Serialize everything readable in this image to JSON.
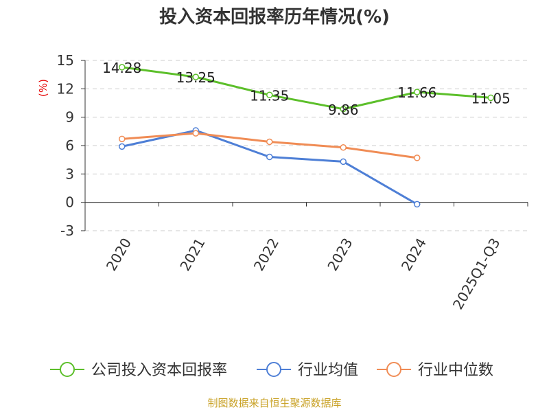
{
  "chart_data": {
    "type": "line",
    "title": "投入资本回报率历年情况(%)",
    "ylabel": "(%)",
    "ylim": [
      -3,
      15
    ],
    "yticks": [
      -3,
      0,
      3,
      6,
      9,
      12,
      15
    ],
    "categories": [
      "2020",
      "2021",
      "2022",
      "2023",
      "2024",
      "2025Q1-Q3"
    ],
    "grid": true,
    "legend_position": "bottom",
    "series": [
      {
        "name": "公司投入资本回报率",
        "color": "#5cbf2a",
        "values": [
          14.28,
          13.25,
          11.35,
          9.86,
          11.66,
          11.05
        ],
        "labels": [
          "14.28",
          "13.25",
          "11.35",
          "9.86",
          "11.66",
          "11.05"
        ]
      },
      {
        "name": "行业均值",
        "color": "#4e7fd6",
        "values": [
          5.9,
          7.6,
          4.8,
          4.3,
          -0.2,
          null
        ]
      },
      {
        "name": "行业中位数",
        "color": "#f08c55",
        "values": [
          6.7,
          7.3,
          6.4,
          5.8,
          4.7,
          null
        ]
      }
    ]
  },
  "source": "制图数据来自恒生聚源数据库"
}
